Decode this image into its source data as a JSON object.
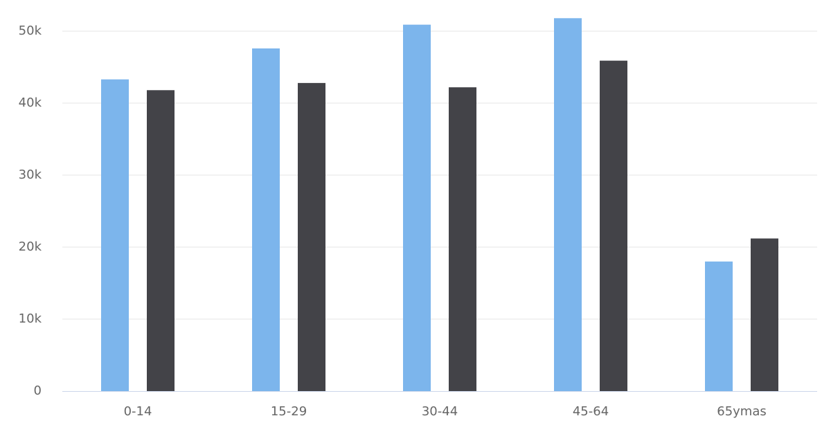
{
  "chart_data": {
    "type": "bar",
    "categories": [
      "0-14",
      "15-29",
      "30-44",
      "45-64",
      "65ymas"
    ],
    "series": [
      {
        "color": "#7cb5ec",
        "values": [
          43300,
          47600,
          50900,
          51800,
          18000
        ]
      },
      {
        "color": "#434348",
        "values": [
          41800,
          42800,
          42200,
          45900,
          21200
        ]
      }
    ],
    "ylim": [
      0,
      50000
    ],
    "yticks": [
      0,
      {
        "value": 10000,
        "label": "10k"
      },
      {
        "value": 20000,
        "label": "20k"
      },
      {
        "value": 30000,
        "label": "30k"
      },
      {
        "value": 40000,
        "label": "40k"
      },
      {
        "value": 50000,
        "label": "50k"
      }
    ],
    "grid": true
  }
}
